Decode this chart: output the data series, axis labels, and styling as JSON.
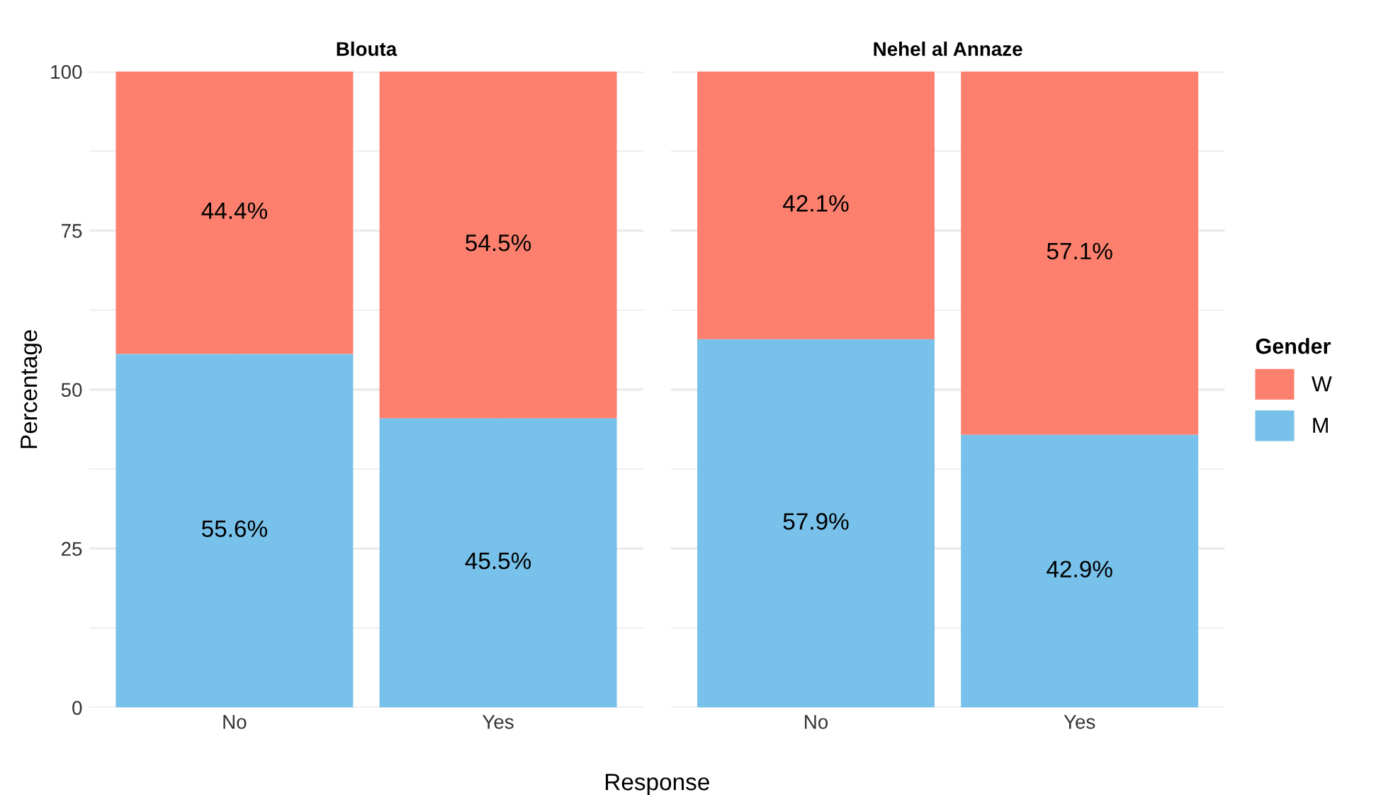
{
  "chart_data": [
    {
      "type": "bar",
      "title": "Blouta",
      "xlabel": "Response",
      "ylabel": "Percentage",
      "stacked": true,
      "categories": [
        "No",
        "Yes"
      ],
      "ylim": [
        0,
        100
      ],
      "yticks": [
        0,
        25,
        50,
        75,
        100
      ],
      "grid": true,
      "series": [
        {
          "color": "#77c1ea",
          "values": [
            55.6,
            45.5
          ],
          "value_labels": [
            "55.6%",
            "45.5%"
          ]
        },
        {
          "color": "#fd806f",
          "values": [
            44.4,
            54.5
          ],
          "value_labels": [
            "44.4%",
            "54.5%"
          ]
        }
      ]
    },
    {
      "type": "bar",
      "title": "Nehel al Annaze",
      "legend_title": "Gender",
      "stacked": true,
      "categories": [
        "No",
        "Yes"
      ],
      "ylim": [
        0,
        100
      ],
      "yticks": [
        0,
        25,
        50,
        75,
        100
      ],
      "grid": true,
      "legend": "right",
      "tick_labels": "x",
      "series": [
        {
          "name": "M",
          "color": "#77c1ea",
          "values": [
            57.9,
            42.9
          ],
          "value_labels": [
            "57.9%",
            "42.9%"
          ]
        },
        {
          "name": "W",
          "color": "#fd806f",
          "values": [
            42.1,
            57.1
          ],
          "value_labels": [
            "42.1%",
            "57.1%"
          ]
        }
      ]
    }
  ]
}
